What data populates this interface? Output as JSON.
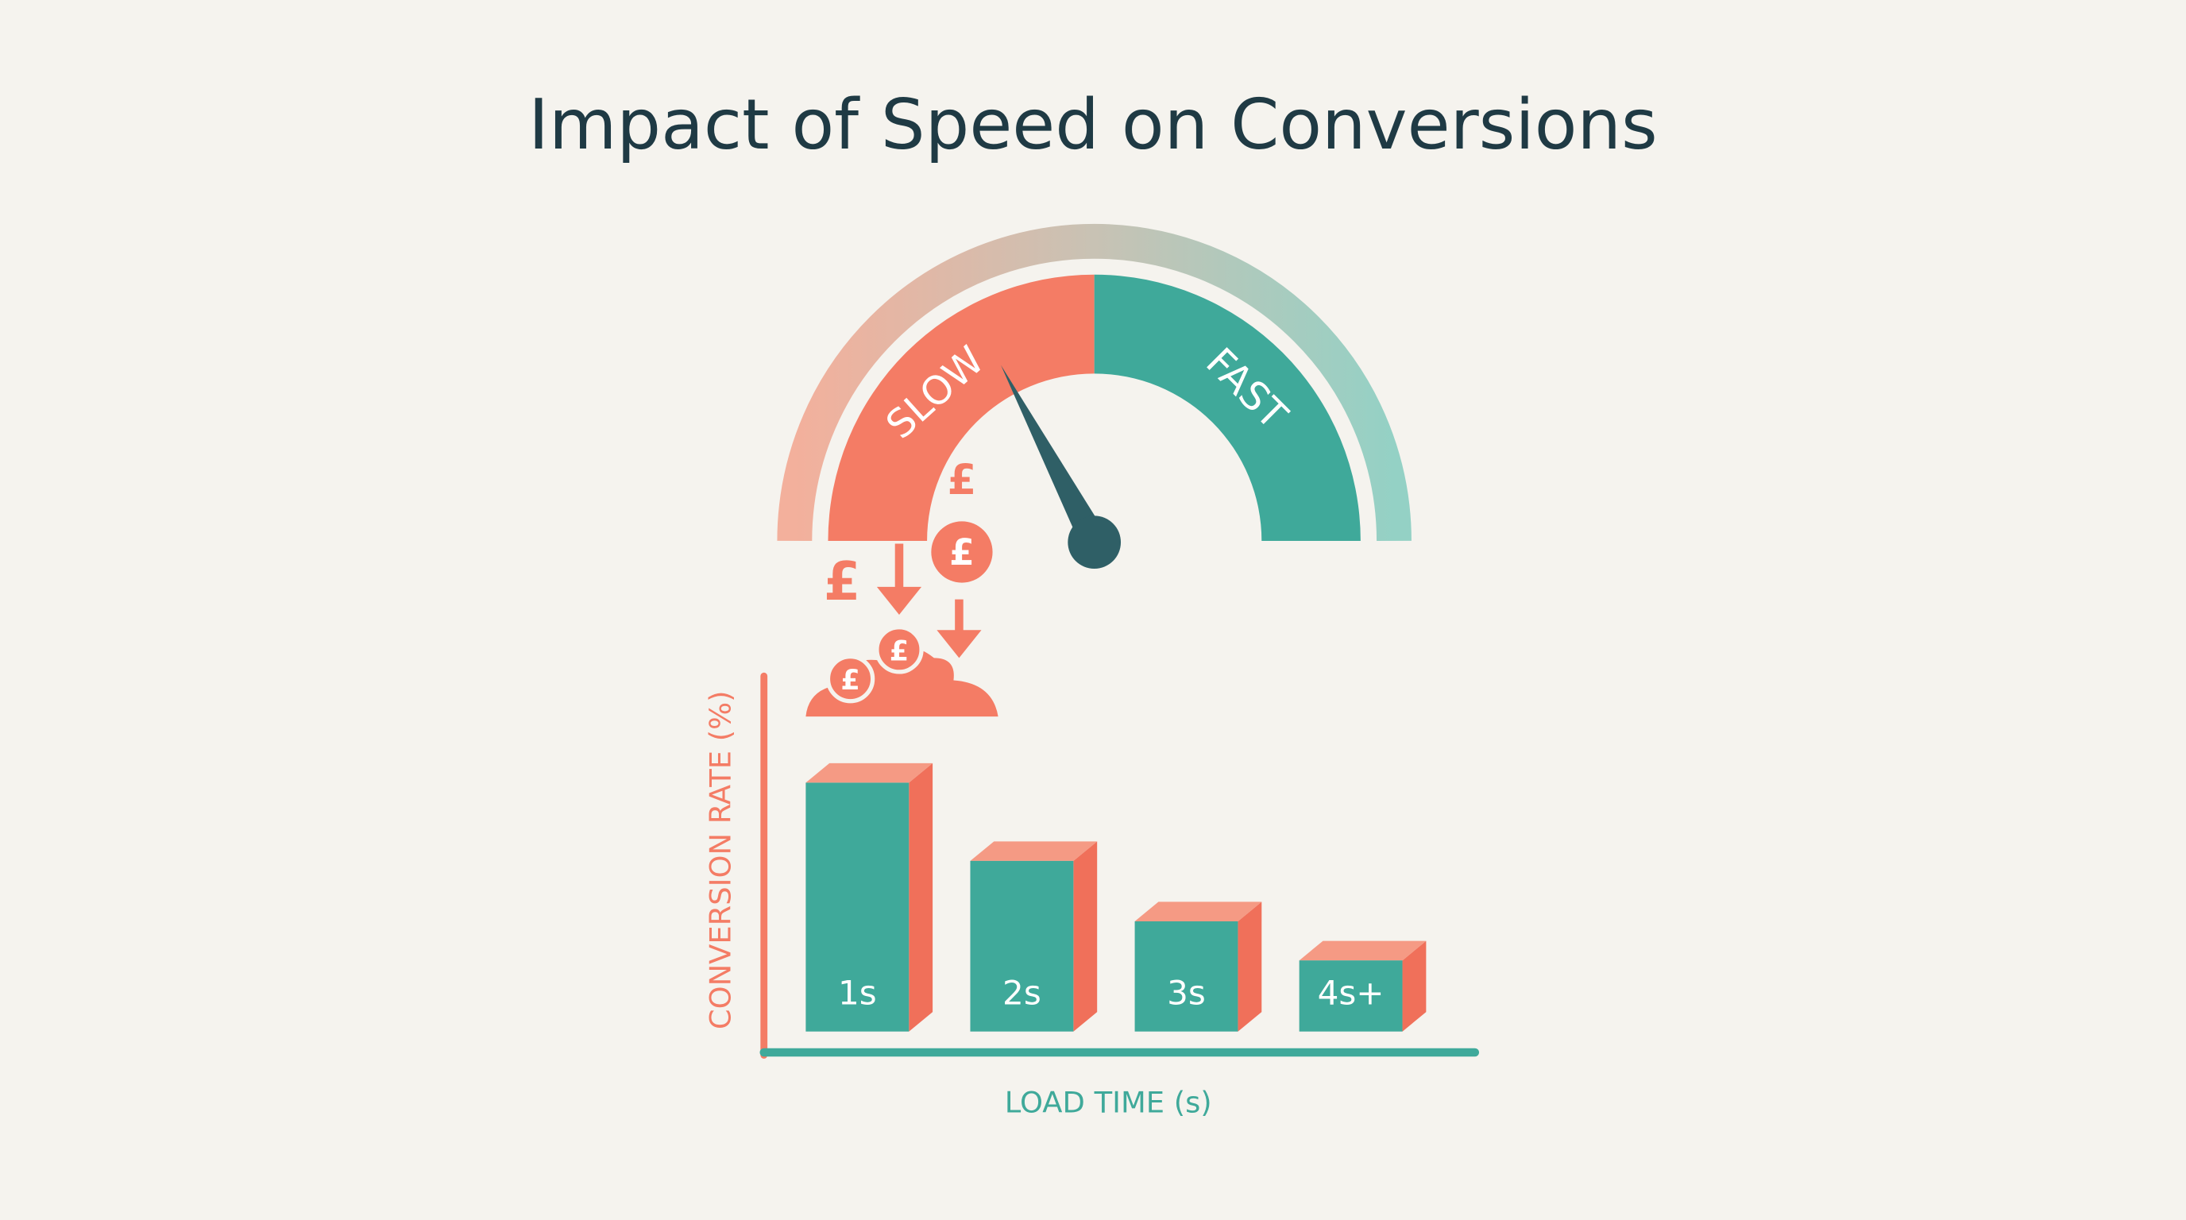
{
  "title": "Impact of Speed on Conversions",
  "gauge": {
    "slow_label": "SLOW",
    "fast_label": "FAST"
  },
  "currency_symbol": "£",
  "chart_data": {
    "type": "bar",
    "x_label": "LOAD TIME (s)",
    "y_label": "CONVERSION RATE (%)",
    "categories": [
      "1s",
      "2s",
      "3s",
      "4s+"
    ],
    "values": [
      7.0,
      4.8,
      3.1,
      2.0
    ],
    "ylim": [
      0,
      10
    ],
    "color": "#3fa99a"
  }
}
